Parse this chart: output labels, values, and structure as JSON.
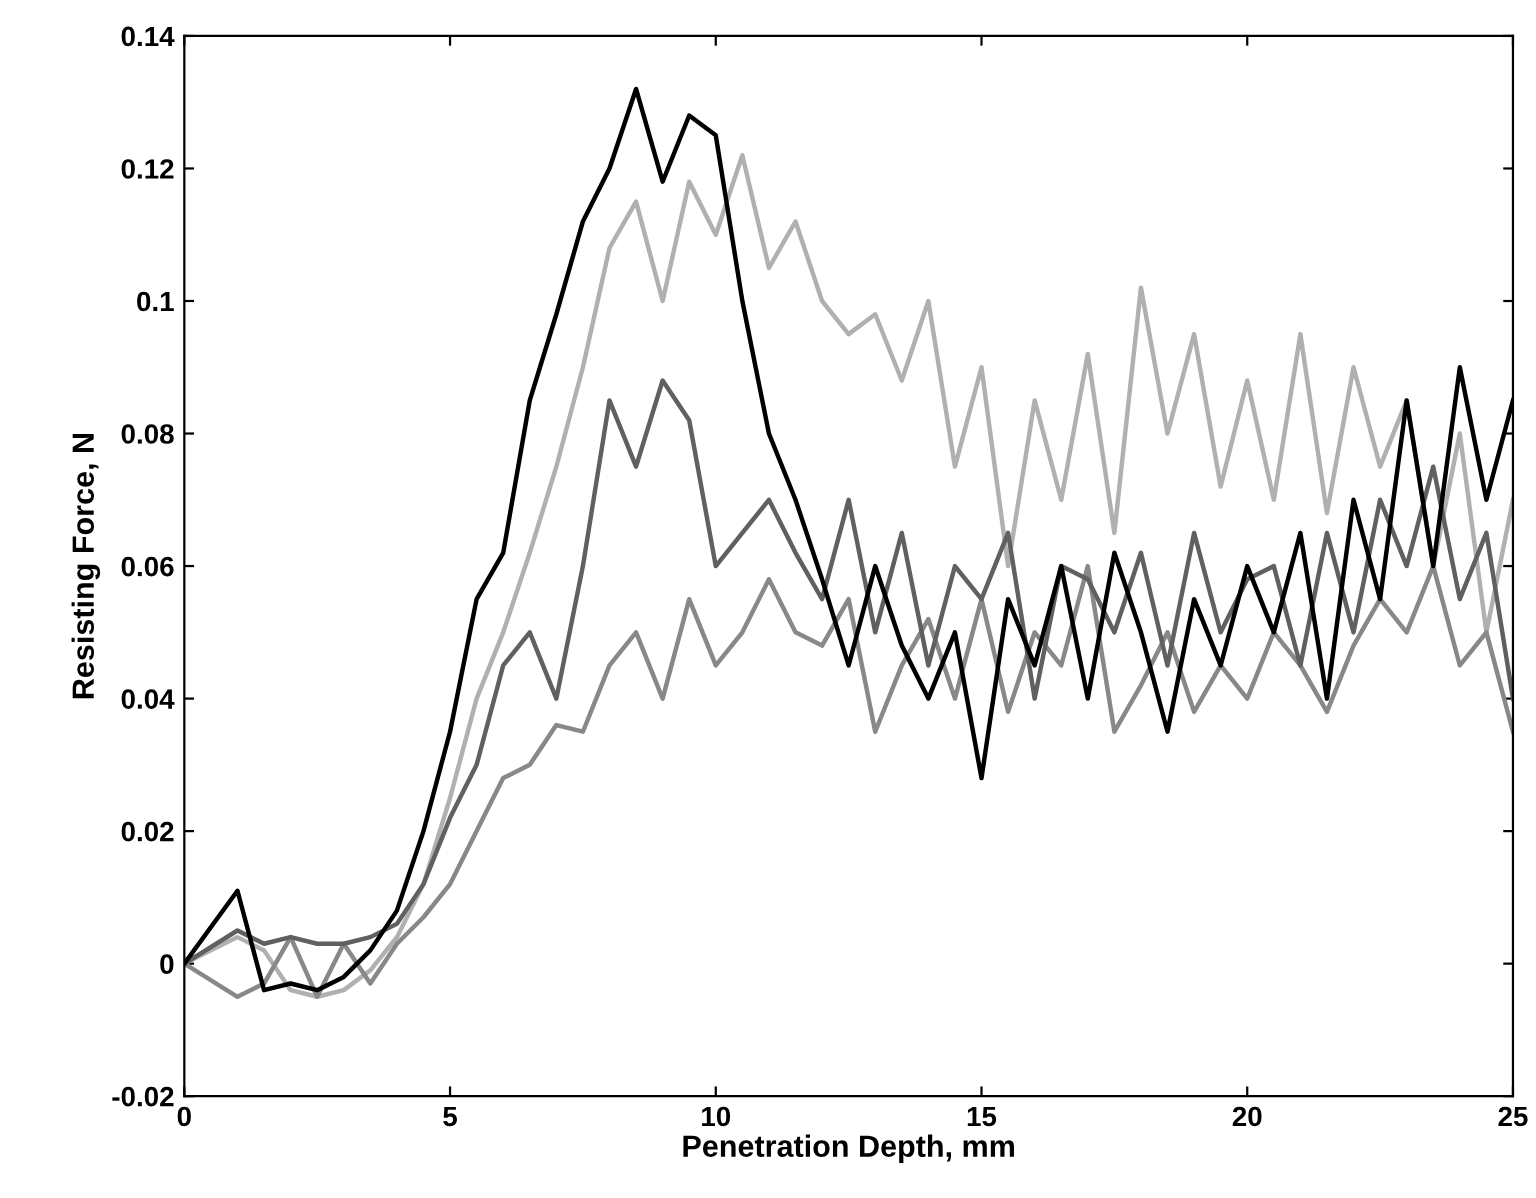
{
  "chart_data": {
    "type": "line",
    "xlabel": "Penetration Depth, mm",
    "ylabel": "Resisting Force, N",
    "x": [
      0,
      1,
      1.5,
      2,
      2.5,
      3,
      3.5,
      4,
      4.5,
      5,
      5.5,
      6,
      6.5,
      7,
      7.5,
      8,
      8.5,
      9,
      9.5,
      10,
      10.5,
      11,
      11.5,
      12,
      12.5,
      13,
      13.5,
      14,
      14.5,
      15,
      15.5,
      16,
      16.5,
      17,
      17.5,
      18,
      18.5,
      19,
      19.5,
      20,
      20.5,
      21,
      21.5,
      22,
      22.5,
      23,
      23.5,
      24,
      24.5,
      25
    ],
    "series": [
      {
        "color": "#b0b0b0",
        "values": [
          0,
          0.004,
          0.002,
          -0.004,
          -0.005,
          -0.004,
          -0.001,
          0.004,
          0.012,
          0.025,
          0.04,
          0.05,
          0.062,
          0.075,
          0.09,
          0.108,
          0.115,
          0.1,
          0.118,
          0.11,
          0.122,
          0.105,
          0.112,
          0.1,
          0.095,
          0.098,
          0.088,
          0.1,
          0.075,
          0.09,
          0.06,
          0.085,
          0.07,
          0.092,
          0.065,
          0.102,
          0.08,
          0.095,
          0.072,
          0.088,
          0.07,
          0.095,
          0.068,
          0.09,
          0.075,
          0.085,
          0.06,
          0.08,
          0.05,
          0.07
        ]
      },
      {
        "color": "#888888",
        "values": [
          0,
          -0.005,
          -0.003,
          0.004,
          -0.005,
          0.003,
          -0.003,
          0.003,
          0.007,
          0.012,
          0.02,
          0.028,
          0.03,
          0.036,
          0.035,
          0.045,
          0.05,
          0.04,
          0.055,
          0.045,
          0.05,
          0.058,
          0.05,
          0.048,
          0.055,
          0.035,
          0.045,
          0.052,
          0.04,
          0.055,
          0.038,
          0.05,
          0.045,
          0.06,
          0.035,
          0.042,
          0.05,
          0.038,
          0.045,
          0.04,
          0.05,
          0.045,
          0.038,
          0.048,
          0.055,
          0.05,
          0.06,
          0.045,
          0.05,
          0.035
        ]
      },
      {
        "color": "#606060",
        "values": [
          0,
          0.005,
          0.003,
          0.004,
          0.003,
          0.003,
          0.004,
          0.006,
          0.012,
          0.022,
          0.03,
          0.045,
          0.05,
          0.04,
          0.06,
          0.085,
          0.075,
          0.088,
          0.082,
          0.06,
          0.065,
          0.07,
          0.062,
          0.055,
          0.07,
          0.05,
          0.065,
          0.045,
          0.06,
          0.055,
          0.065,
          0.04,
          0.06,
          0.058,
          0.05,
          0.062,
          0.045,
          0.065,
          0.05,
          0.058,
          0.06,
          0.045,
          0.065,
          0.05,
          0.07,
          0.06,
          0.075,
          0.055,
          0.065,
          0.04
        ]
      },
      {
        "color": "#000000",
        "values": [
          0,
          0.011,
          -0.004,
          -0.003,
          -0.004,
          -0.002,
          0.002,
          0.008,
          0.02,
          0.035,
          0.055,
          0.062,
          0.085,
          0.098,
          0.112,
          0.12,
          0.132,
          0.118,
          0.128,
          0.125,
          0.1,
          0.08,
          0.07,
          0.058,
          0.045,
          0.06,
          0.048,
          0.04,
          0.05,
          0.028,
          0.055,
          0.045,
          0.06,
          0.04,
          0.062,
          0.05,
          0.035,
          0.055,
          0.045,
          0.06,
          0.05,
          0.065,
          0.04,
          0.07,
          0.055,
          0.085,
          0.06,
          0.09,
          0.07,
          0.085
        ]
      }
    ],
    "xlim": [
      0,
      25
    ],
    "xticks": [
      0,
      5,
      10,
      15,
      20,
      25
    ],
    "ylim": [
      -0.02,
      0.14
    ],
    "yticks": [
      {
        "value": -0.02,
        "label": "-0.02"
      },
      0,
      0.02,
      0.04,
      0.06,
      0.08,
      0.1,
      0.12,
      0.14
    ],
    "grid": false,
    "legend": false,
    "marker": "none",
    "line_style": "solid"
  }
}
